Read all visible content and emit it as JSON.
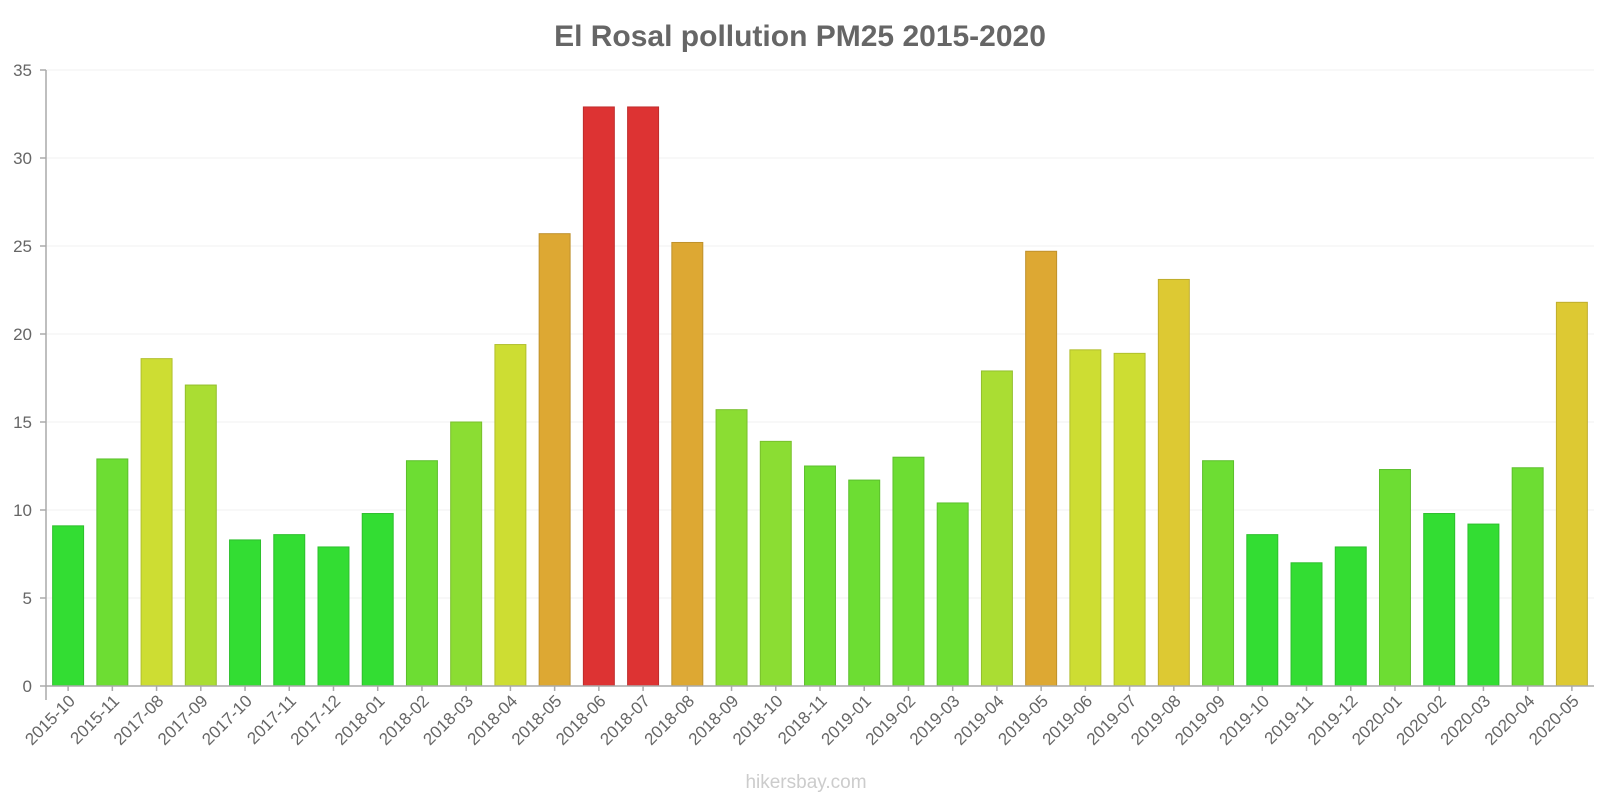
{
  "chart_data": {
    "type": "bar",
    "title": "El Rosal pollution PM25 2015-2020",
    "xlabel": "",
    "ylabel": "",
    "ylim": [
      0,
      35
    ],
    "yticks": [
      0,
      5,
      10,
      15,
      20,
      25,
      30,
      35
    ],
    "grid": true,
    "categories": [
      "2015-10",
      "2015-11",
      "2017-08",
      "2017-09",
      "2017-10",
      "2017-11",
      "2017-12",
      "2018-01",
      "2018-02",
      "2018-03",
      "2018-04",
      "2018-05",
      "2018-06",
      "2018-07",
      "2018-08",
      "2018-09",
      "2018-10",
      "2018-11",
      "2019-01",
      "2019-02",
      "2019-03",
      "2019-04",
      "2019-05",
      "2019-06",
      "2019-07",
      "2019-08",
      "2019-09",
      "2019-10",
      "2019-11",
      "2019-12",
      "2020-01",
      "2020-02",
      "2020-03",
      "2020-04",
      "2020-05"
    ],
    "values": [
      9.1,
      12.9,
      18.6,
      17.1,
      8.3,
      8.6,
      7.9,
      9.8,
      12.8,
      15.0,
      19.4,
      25.7,
      32.9,
      32.9,
      25.2,
      15.7,
      13.9,
      12.5,
      11.7,
      13.0,
      10.4,
      17.9,
      24.7,
      19.1,
      18.9,
      23.1,
      12.8,
      8.6,
      7.0,
      7.9,
      12.3,
      9.8,
      9.2,
      12.4,
      21.8
    ],
    "watermark": "hikersbay.com"
  },
  "colors": {
    "levels": [
      {
        "max": 10,
        "fill": "#33dd33",
        "stroke": "#2cbf2c"
      },
      {
        "max": 13.5,
        "fill": "#6ddd33",
        "stroke": "#5cbf2c"
      },
      {
        "max": 16,
        "fill": "#8bdd33",
        "stroke": "#78bf2c"
      },
      {
        "max": 18,
        "fill": "#aadd33",
        "stroke": "#93bf2c"
      },
      {
        "max": 21,
        "fill": "#cddd33",
        "stroke": "#b1bf2c"
      },
      {
        "max": 24,
        "fill": "#ddc933",
        "stroke": "#bfad2c"
      },
      {
        "max": 30,
        "fill": "#dda833",
        "stroke": "#bf912c"
      },
      {
        "max": 100,
        "fill": "#dd3333",
        "stroke": "#bf2c2c"
      }
    ]
  }
}
